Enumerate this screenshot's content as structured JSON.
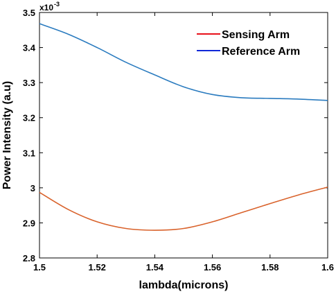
{
  "chart_data": {
    "type": "line",
    "xlabel": "lambda(microns)",
    "ylabel": "Power Intensity (a.u)",
    "multiplier": {
      "base": "x10",
      "exponent": "-3"
    },
    "xlim": [
      1.5,
      1.6
    ],
    "ylim": [
      2.8,
      3.5
    ],
    "x_ticks": [
      "1.5",
      "1.52",
      "1.54",
      "1.56",
      "1.58",
      "1.6"
    ],
    "y_ticks": [
      "2.8",
      "2.9",
      "3",
      "3.1",
      "3.2",
      "3.3",
      "3.4",
      "3.5"
    ],
    "grid": false,
    "legend_position": "top-right",
    "legend": [
      {
        "name": "Sensing Arm",
        "color": "#e8101a"
      },
      {
        "name": "Reference Arm",
        "color": "#1028d8"
      }
    ],
    "series": [
      {
        "color": "#2a7bbf",
        "x": [
          1.5,
          1.51,
          1.52,
          1.53,
          1.54,
          1.55,
          1.56,
          1.57,
          1.58,
          1.59,
          1.6
        ],
        "values": [
          3.468,
          3.438,
          3.4,
          3.358,
          3.322,
          3.288,
          3.266,
          3.257,
          3.255,
          3.253,
          3.249
        ]
      },
      {
        "color": "#d9622b",
        "x": [
          1.5,
          1.51,
          1.52,
          1.53,
          1.54,
          1.55,
          1.56,
          1.57,
          1.58,
          1.59,
          1.6
        ],
        "values": [
          2.987,
          2.938,
          2.903,
          2.884,
          2.879,
          2.884,
          2.903,
          2.929,
          2.955,
          2.98,
          3.002
        ]
      }
    ]
  }
}
